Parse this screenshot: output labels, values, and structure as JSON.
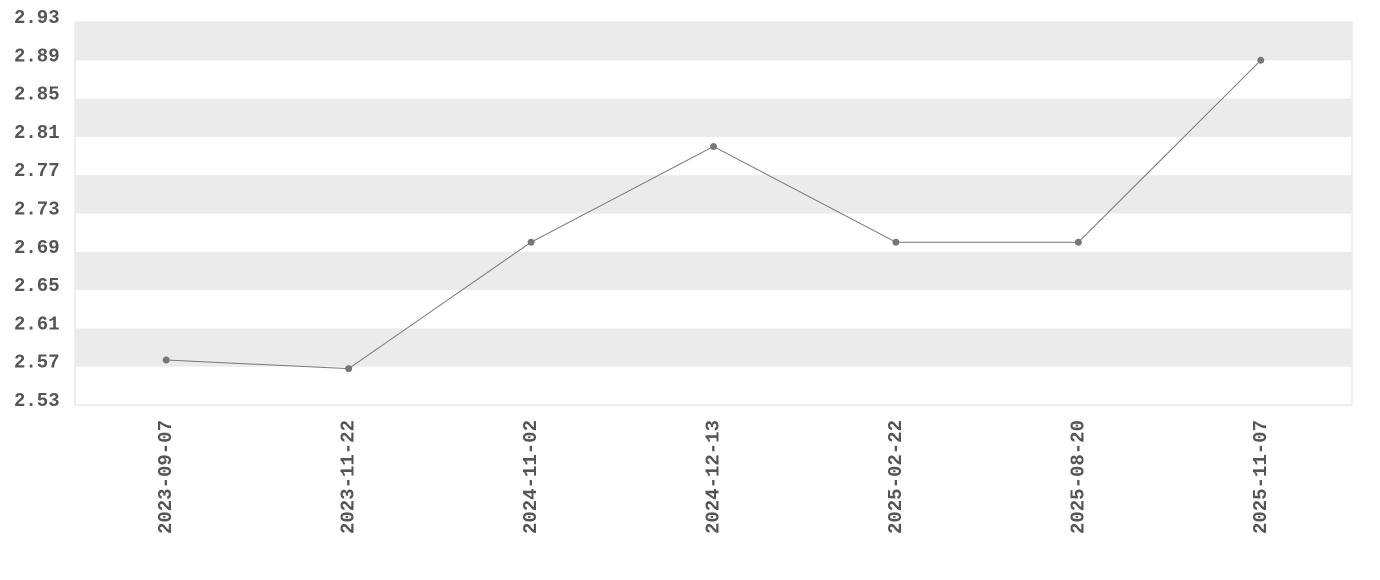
{
  "chart_data": {
    "type": "line",
    "categories": [
      "2023-09-07",
      "2023-11-22",
      "2024-11-02",
      "2024-12-13",
      "2025-02-22",
      "2025-08-20",
      "2025-11-07"
    ],
    "values": [
      2.577,
      2.568,
      2.7,
      2.8,
      2.7,
      2.7,
      2.89
    ],
    "color": "#777777",
    "ylim": [
      2.53,
      2.93
    ],
    "yticks": [
      2.53,
      2.57,
      2.61,
      2.65,
      2.69,
      2.73,
      2.77,
      2.81,
      2.85,
      2.89,
      2.93
    ],
    "grid": true
  }
}
